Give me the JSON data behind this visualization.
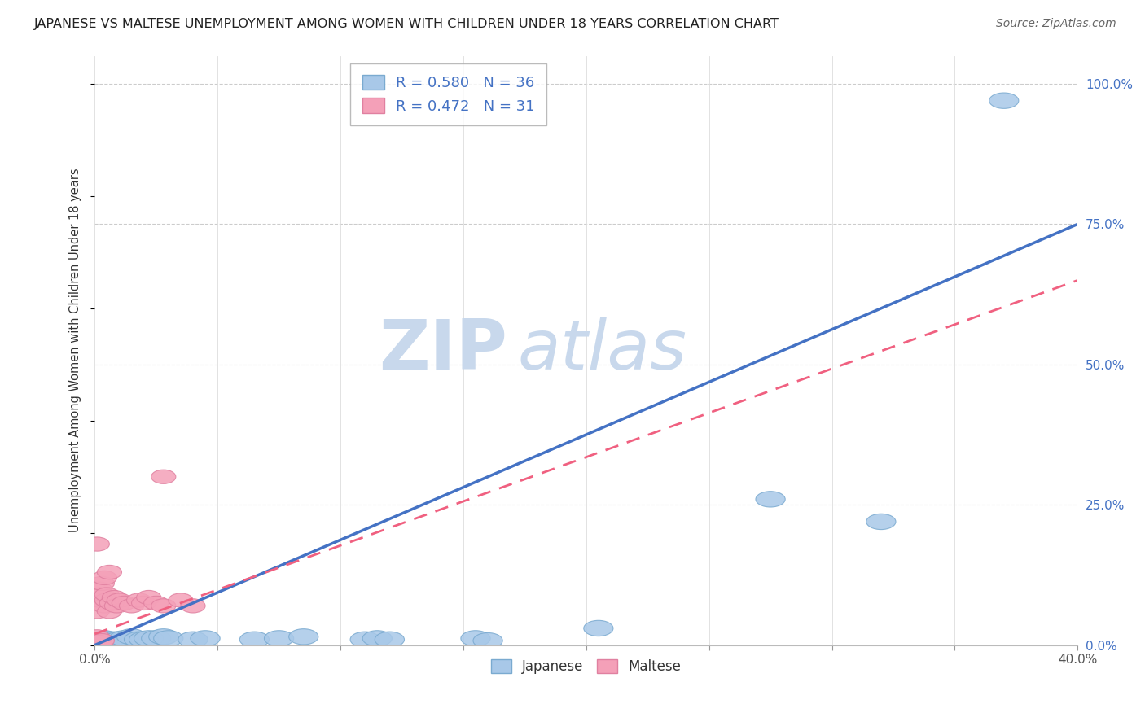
{
  "title": "JAPANESE VS MALTESE UNEMPLOYMENT AMONG WOMEN WITH CHILDREN UNDER 18 YEARS CORRELATION CHART",
  "source": "Source: ZipAtlas.com",
  "ylabel": "Unemployment Among Women with Children Under 18 years",
  "xlim": [
    0.0,
    0.4
  ],
  "ylim": [
    0.0,
    1.05
  ],
  "xticks": [
    0.0,
    0.05,
    0.1,
    0.15,
    0.2,
    0.25,
    0.3,
    0.35,
    0.4
  ],
  "xtick_labels": [
    "0.0%",
    "",
    "",
    "",
    "",
    "",
    "",
    "",
    "40.0%"
  ],
  "yticks_right": [
    0.0,
    0.25,
    0.5,
    0.75,
    1.0
  ],
  "ytick_labels_right": [
    "0.0%",
    "25.0%",
    "50.0%",
    "75.0%",
    "100.0%"
  ],
  "japanese_color": "#a8c8e8",
  "maltese_color": "#f4a0b8",
  "japanese_line_color": "#4472c4",
  "maltese_line_color": "#f06080",
  "legend_R_color": "#4472c4",
  "watermark_zip": "ZIP",
  "watermark_atlas": "atlas",
  "watermark_color": "#c8d8ec",
  "japanese_R": 0.58,
  "japanese_N": 36,
  "maltese_R": 0.472,
  "maltese_N": 31,
  "japanese_line_x0": 0.0,
  "japanese_line_y0": 0.0,
  "japanese_line_x1": 0.4,
  "japanese_line_y1": 0.75,
  "maltese_line_x0": 0.0,
  "maltese_line_y0": 0.02,
  "maltese_line_x1": 0.4,
  "maltese_line_y1": 0.65,
  "japanese_points": [
    [
      0.001,
      0.005
    ],
    [
      0.002,
      0.008
    ],
    [
      0.002,
      0.005
    ],
    [
      0.003,
      0.01
    ],
    [
      0.003,
      0.005
    ],
    [
      0.004,
      0.008
    ],
    [
      0.004,
      0.012
    ],
    [
      0.005,
      0.005
    ],
    [
      0.005,
      0.01
    ],
    [
      0.006,
      0.008
    ],
    [
      0.007,
      0.005
    ],
    [
      0.008,
      0.01
    ],
    [
      0.009,
      0.008
    ],
    [
      0.01,
      0.01
    ],
    [
      0.012,
      0.012
    ],
    [
      0.015,
      0.015
    ],
    [
      0.018,
      0.01
    ],
    [
      0.02,
      0.01
    ],
    [
      0.022,
      0.012
    ],
    [
      0.025,
      0.012
    ],
    [
      0.028,
      0.015
    ],
    [
      0.03,
      0.012
    ],
    [
      0.04,
      0.01
    ],
    [
      0.045,
      0.012
    ],
    [
      0.065,
      0.01
    ],
    [
      0.075,
      0.012
    ],
    [
      0.085,
      0.015
    ],
    [
      0.11,
      0.01
    ],
    [
      0.115,
      0.012
    ],
    [
      0.12,
      0.01
    ],
    [
      0.155,
      0.012
    ],
    [
      0.16,
      0.008
    ],
    [
      0.205,
      0.03
    ],
    [
      0.275,
      0.26
    ],
    [
      0.32,
      0.22
    ],
    [
      0.37,
      0.97
    ]
  ],
  "maltese_points": [
    [
      0.001,
      0.005
    ],
    [
      0.001,
      0.01
    ],
    [
      0.001,
      0.015
    ],
    [
      0.001,
      0.06
    ],
    [
      0.002,
      0.005
    ],
    [
      0.002,
      0.08
    ],
    [
      0.002,
      0.1
    ],
    [
      0.003,
      0.008
    ],
    [
      0.003,
      0.09
    ],
    [
      0.003,
      0.11
    ],
    [
      0.004,
      0.07
    ],
    [
      0.004,
      0.12
    ],
    [
      0.005,
      0.08
    ],
    [
      0.005,
      0.09
    ],
    [
      0.006,
      0.06
    ],
    [
      0.006,
      0.13
    ],
    [
      0.007,
      0.075
    ],
    [
      0.008,
      0.085
    ],
    [
      0.009,
      0.07
    ],
    [
      0.01,
      0.08
    ],
    [
      0.012,
      0.075
    ],
    [
      0.015,
      0.07
    ],
    [
      0.018,
      0.08
    ],
    [
      0.02,
      0.075
    ],
    [
      0.022,
      0.085
    ],
    [
      0.025,
      0.075
    ],
    [
      0.028,
      0.07
    ],
    [
      0.028,
      0.3
    ],
    [
      0.035,
      0.08
    ],
    [
      0.04,
      0.07
    ],
    [
      0.001,
      0.18
    ]
  ]
}
